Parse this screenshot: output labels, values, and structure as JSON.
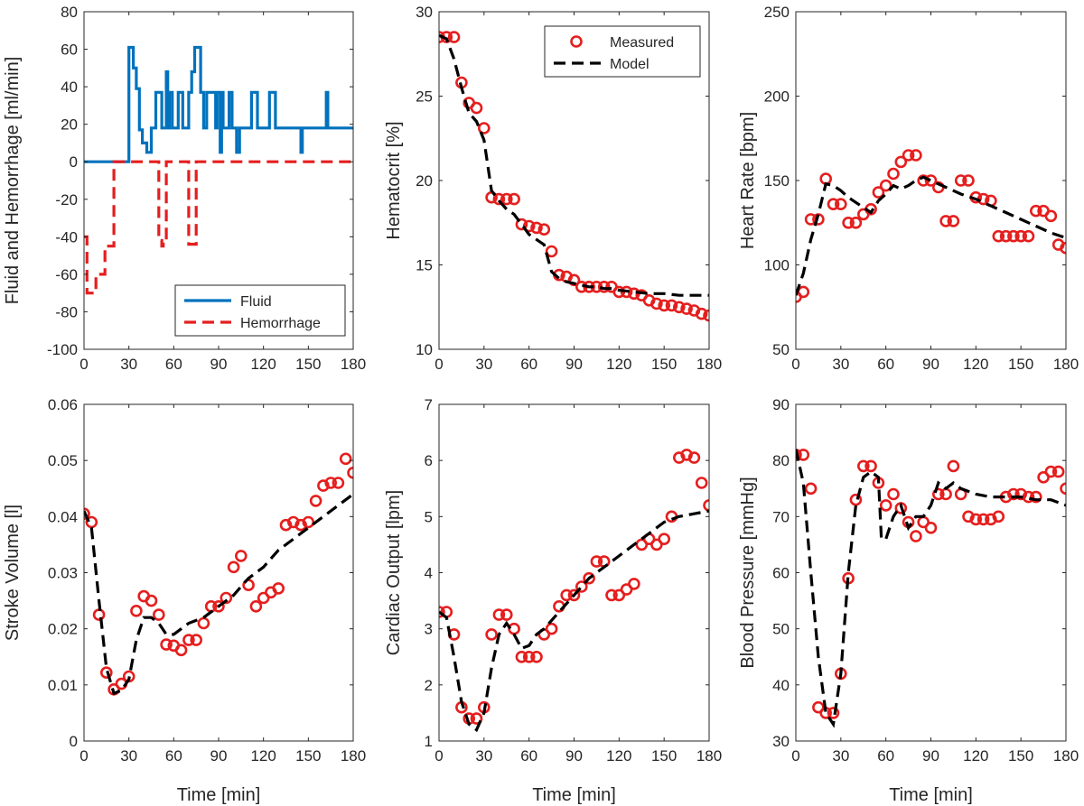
{
  "colors": {
    "fluid": "#0072bd",
    "hemorrhage": "#e51e1e",
    "measured": "#e51e1e",
    "model": "#000000",
    "axis": "#262626"
  },
  "chart_data": [
    {
      "id": "fluid",
      "type": "line",
      "xlabel": "",
      "ylabel": "Fluid and Hemorrhage [ml/min]",
      "xlim": [
        0,
        180
      ],
      "ylim": [
        -100,
        80
      ],
      "xticks": [
        0,
        30,
        60,
        90,
        120,
        150,
        180
      ],
      "yticks": [
        -100,
        -80,
        -60,
        -40,
        -20,
        0,
        20,
        40,
        60,
        80
      ],
      "legend_position": "bottom-right",
      "series": [
        {
          "name": "Fluid",
          "style": "solid",
          "x": [
            0,
            30,
            30,
            33,
            33,
            35,
            35,
            37,
            37,
            39,
            39,
            42,
            42,
            45,
            45,
            48,
            48,
            52,
            52,
            55,
            55,
            56,
            56,
            57,
            57,
            59,
            59,
            63,
            63,
            66,
            66,
            70,
            70,
            72,
            72,
            74,
            74,
            78,
            78,
            80,
            80,
            82,
            82,
            88,
            88,
            89,
            89,
            91,
            91,
            92,
            92,
            93,
            93,
            97,
            97,
            99,
            99,
            102,
            102,
            104,
            104,
            112,
            112,
            116,
            116,
            124,
            124,
            128,
            128,
            129,
            129,
            145,
            145,
            146,
            146,
            148,
            148,
            162,
            162,
            163,
            163,
            180
          ],
          "y": [
            0,
            0,
            61,
            61,
            50,
            50,
            39,
            39,
            17,
            17,
            10,
            10,
            5,
            5,
            18,
            18,
            37,
            37,
            18,
            18,
            48,
            48,
            18,
            18,
            37,
            37,
            18,
            18,
            37,
            37,
            18,
            18,
            37,
            37,
            48,
            48,
            61,
            61,
            37,
            37,
            18,
            18,
            37,
            37,
            18,
            18,
            37,
            37,
            5,
            5,
            37,
            37,
            18,
            18,
            37,
            37,
            18,
            18,
            5,
            5,
            18,
            18,
            37,
            37,
            18,
            18,
            37,
            37,
            18,
            18,
            18,
            18,
            5,
            5,
            18,
            18,
            18,
            18,
            37,
            37,
            18,
            18
          ]
        },
        {
          "name": "Hemorrhage",
          "style": "dashed",
          "x": [
            0,
            2,
            2,
            8,
            8,
            14,
            14,
            20,
            20,
            25,
            30,
            35,
            40,
            45,
            50,
            50,
            52,
            52,
            53,
            53,
            55,
            55,
            60,
            65,
            70,
            70,
            75,
            75,
            80,
            90,
            100,
            110,
            120,
            130,
            140,
            150,
            160,
            170,
            180
          ],
          "y": [
            -40,
            -40,
            -70,
            -70,
            -60,
            -60,
            -45,
            -45,
            0,
            0,
            0,
            0,
            0,
            0,
            0,
            -42,
            -42,
            -45,
            -45,
            -42,
            -42,
            0,
            0,
            0,
            0,
            -44,
            -44,
            0,
            0,
            0,
            0,
            0,
            0,
            0,
            0,
            0,
            0,
            0,
            0
          ]
        }
      ]
    },
    {
      "id": "hct",
      "type": "scatter",
      "xlabel": "",
      "ylabel": "Hematocrit [%]",
      "xlim": [
        0,
        180
      ],
      "ylim": [
        10,
        30
      ],
      "xticks": [
        0,
        30,
        60,
        90,
        120,
        150,
        180
      ],
      "yticks": [
        10,
        15,
        20,
        25,
        30
      ],
      "legend_position": "top-right",
      "series": [
        {
          "name": "Measured",
          "style": "marker",
          "x": [
            0,
            5,
            10,
            15,
            20,
            25,
            30,
            35,
            40,
            45,
            50,
            55,
            60,
            65,
            70,
            75,
            80,
            85,
            90,
            95,
            100,
            105,
            110,
            115,
            120,
            125,
            130,
            135,
            140,
            145,
            150,
            155,
            160,
            165,
            170,
            175,
            180
          ],
          "y": [
            28.5,
            28.5,
            28.5,
            25.8,
            24.6,
            24.3,
            23.1,
            19.0,
            18.9,
            18.9,
            18.9,
            17.4,
            17.3,
            17.2,
            17.1,
            15.8,
            14.4,
            14.3,
            14.1,
            13.7,
            13.7,
            13.7,
            13.7,
            13.7,
            13.4,
            13.4,
            13.3,
            13.2,
            12.9,
            12.7,
            12.6,
            12.6,
            12.5,
            12.4,
            12.3,
            12.1,
            12.0
          ]
        },
        {
          "name": "Model",
          "style": "dashed",
          "x": [
            0,
            5,
            10,
            15,
            20,
            25,
            30,
            35,
            40,
            45,
            50,
            55,
            60,
            65,
            70,
            75,
            80,
            85,
            90,
            95,
            100,
            105,
            110,
            115,
            120,
            130,
            140,
            150,
            160,
            170,
            180
          ],
          "y": [
            28.6,
            28.4,
            27.2,
            25.5,
            24.0,
            23.5,
            22.4,
            19.4,
            18.8,
            18.3,
            18.0,
            17.4,
            16.8,
            16.5,
            16.2,
            14.6,
            14.2,
            14.0,
            13.9,
            13.8,
            13.7,
            13.7,
            13.6,
            13.6,
            13.5,
            13.4,
            13.3,
            13.3,
            13.2,
            13.2,
            13.2
          ]
        }
      ]
    },
    {
      "id": "hr",
      "type": "scatter",
      "xlabel": "",
      "ylabel": "Heart Rate [bpm]",
      "xlim": [
        0,
        180
      ],
      "ylim": [
        50,
        250
      ],
      "xticks": [
        0,
        30,
        60,
        90,
        120,
        150,
        180
      ],
      "yticks": [
        50,
        100,
        150,
        200,
        250
      ],
      "series": [
        {
          "name": "Measured",
          "style": "marker",
          "x": [
            0,
            5,
            10,
            15,
            20,
            25,
            30,
            35,
            40,
            45,
            50,
            55,
            60,
            65,
            70,
            75,
            80,
            85,
            90,
            95,
            100,
            105,
            110,
            115,
            120,
            125,
            130,
            135,
            140,
            145,
            150,
            155,
            160,
            165,
            170,
            175,
            180
          ],
          "y": [
            81,
            84,
            127,
            127,
            151,
            136,
            136,
            125,
            125,
            130,
            133,
            143,
            147,
            154,
            161,
            165,
            165,
            150,
            150,
            146,
            126,
            126,
            150,
            150,
            140,
            139,
            138,
            117,
            117,
            117,
            117,
            117,
            132,
            132,
            129,
            112,
            110
          ]
        },
        {
          "name": "Model",
          "style": "dashed",
          "x": [
            0,
            5,
            10,
            15,
            20,
            25,
            30,
            35,
            40,
            45,
            50,
            55,
            60,
            65,
            70,
            75,
            80,
            85,
            90,
            100,
            110,
            120,
            130,
            140,
            150,
            160,
            170,
            180
          ],
          "y": [
            82,
            95,
            115,
            130,
            148,
            147,
            144,
            140,
            137,
            134,
            131,
            138,
            142,
            147,
            145,
            147,
            150,
            152,
            150,
            146,
            142,
            139,
            135,
            131,
            127,
            123,
            119,
            116
          ]
        }
      ]
    },
    {
      "id": "sv",
      "type": "scatter",
      "xlabel": "Time [min]",
      "ylabel": "Stroke Volume [l]",
      "xlim": [
        0,
        180
      ],
      "ylim": [
        0,
        0.06
      ],
      "xticks": [
        0,
        30,
        60,
        90,
        120,
        150,
        180
      ],
      "yticks": [
        0,
        0.01,
        0.02,
        0.03,
        0.04,
        0.05,
        0.06
      ],
      "ytick_labels": [
        "0",
        "0.01",
        "0.02",
        "0.03",
        "0.04",
        "0.05",
        "0.06"
      ],
      "series": [
        {
          "name": "Measured",
          "style": "marker",
          "x": [
            0,
            5,
            10,
            15,
            20,
            25,
            30,
            35,
            40,
            45,
            50,
            55,
            60,
            65,
            70,
            75,
            80,
            85,
            90,
            95,
            100,
            105,
            110,
            115,
            120,
            125,
            130,
            135,
            140,
            145,
            150,
            155,
            160,
            165,
            170,
            175,
            180
          ],
          "y": [
            0.0405,
            0.039,
            0.0225,
            0.0122,
            0.0092,
            0.0102,
            0.0115,
            0.0232,
            0.0258,
            0.025,
            0.0225,
            0.0172,
            0.017,
            0.0162,
            0.018,
            0.018,
            0.021,
            0.024,
            0.024,
            0.0255,
            0.031,
            0.033,
            0.0278,
            0.024,
            0.0255,
            0.0265,
            0.0272,
            0.0385,
            0.039,
            0.0385,
            0.039,
            0.0428,
            0.0455,
            0.046,
            0.046,
            0.0503,
            0.0478
          ]
        },
        {
          "name": "Model",
          "style": "dashed",
          "x": [
            0,
            5,
            10,
            15,
            20,
            25,
            30,
            35,
            40,
            45,
            50,
            55,
            60,
            65,
            70,
            80,
            90,
            100,
            110,
            120,
            130,
            140,
            150,
            160,
            170,
            180
          ],
          "y": [
            0.041,
            0.038,
            0.025,
            0.013,
            0.0085,
            0.009,
            0.011,
            0.018,
            0.022,
            0.022,
            0.021,
            0.019,
            0.019,
            0.02,
            0.021,
            0.022,
            0.024,
            0.026,
            0.029,
            0.031,
            0.034,
            0.036,
            0.038,
            0.04,
            0.042,
            0.044
          ]
        }
      ]
    },
    {
      "id": "co",
      "type": "scatter",
      "xlabel": "Time [min]",
      "ylabel": "Cardiac Output [lpm]",
      "xlim": [
        0,
        180
      ],
      "ylim": [
        1,
        7
      ],
      "xticks": [
        0,
        30,
        60,
        90,
        120,
        150,
        180
      ],
      "yticks": [
        1,
        2,
        3,
        4,
        5,
        6,
        7
      ],
      "series": [
        {
          "name": "Measured",
          "style": "marker",
          "x": [
            0,
            5,
            10,
            15,
            20,
            25,
            30,
            35,
            40,
            45,
            50,
            55,
            60,
            65,
            70,
            75,
            80,
            85,
            90,
            95,
            100,
            105,
            110,
            115,
            120,
            125,
            130,
            135,
            140,
            145,
            150,
            155,
            160,
            165,
            170,
            175,
            180
          ],
          "y": [
            3.3,
            3.3,
            2.9,
            1.6,
            1.4,
            1.4,
            1.6,
            2.9,
            3.25,
            3.25,
            3.0,
            2.5,
            2.5,
            2.5,
            2.9,
            3.0,
            3.4,
            3.6,
            3.6,
            3.75,
            3.9,
            4.2,
            4.2,
            3.6,
            3.6,
            3.7,
            3.8,
            4.5,
            4.6,
            4.5,
            4.6,
            5.0,
            6.05,
            6.1,
            6.05,
            5.6,
            5.2
          ]
        },
        {
          "name": "Model",
          "style": "dashed",
          "x": [
            0,
            5,
            10,
            15,
            20,
            25,
            30,
            35,
            40,
            45,
            50,
            55,
            60,
            65,
            70,
            80,
            90,
            100,
            110,
            120,
            130,
            140,
            150,
            160,
            170,
            180
          ],
          "y": [
            3.3,
            3.2,
            2.5,
            1.7,
            1.3,
            1.2,
            1.5,
            2.3,
            2.9,
            3.1,
            2.9,
            2.65,
            2.7,
            2.9,
            3.0,
            3.3,
            3.6,
            3.9,
            4.1,
            4.3,
            4.5,
            4.7,
            4.9,
            5.0,
            5.05,
            5.1
          ]
        }
      ]
    },
    {
      "id": "bp",
      "type": "scatter",
      "xlabel": "Time [min]",
      "ylabel": "Blood Pressure [mmHg]",
      "xlim": [
        0,
        180
      ],
      "ylim": [
        30,
        90
      ],
      "xticks": [
        0,
        30,
        60,
        90,
        120,
        150,
        180
      ],
      "yticks": [
        30,
        40,
        50,
        60,
        70,
        80,
        90
      ],
      "series": [
        {
          "name": "Measured",
          "style": "marker",
          "x": [
            0,
            5,
            10,
            15,
            20,
            25,
            30,
            35,
            40,
            45,
            50,
            55,
            60,
            65,
            70,
            75,
            80,
            85,
            90,
            95,
            100,
            105,
            110,
            115,
            120,
            125,
            130,
            135,
            140,
            145,
            150,
            155,
            160,
            165,
            170,
            175,
            180
          ],
          "y": [
            81,
            81,
            75,
            36,
            35,
            35,
            42,
            59,
            73,
            79,
            79,
            76,
            72,
            74,
            71.5,
            69,
            66.5,
            69,
            68,
            74,
            74,
            79,
            74,
            70,
            69.5,
            69.5,
            69.5,
            70,
            73.5,
            74,
            74,
            73.5,
            73.5,
            77,
            78,
            78,
            75
          ]
        },
        {
          "name": "Model",
          "style": "dashed",
          "x": [
            0,
            5,
            10,
            15,
            20,
            25,
            30,
            35,
            40,
            45,
            50,
            55,
            57,
            60,
            65,
            70,
            75,
            80,
            85,
            90,
            95,
            100,
            105,
            110,
            120,
            130,
            140,
            150,
            160,
            170,
            180
          ],
          "y": [
            82,
            76,
            60,
            45,
            35,
            33,
            42,
            60,
            72,
            77,
            78,
            77,
            66,
            66,
            70,
            72,
            68,
            70,
            70,
            72,
            76,
            75,
            76,
            75,
            74,
            73.5,
            73.5,
            73.5,
            73,
            73,
            72
          ]
        }
      ]
    }
  ]
}
